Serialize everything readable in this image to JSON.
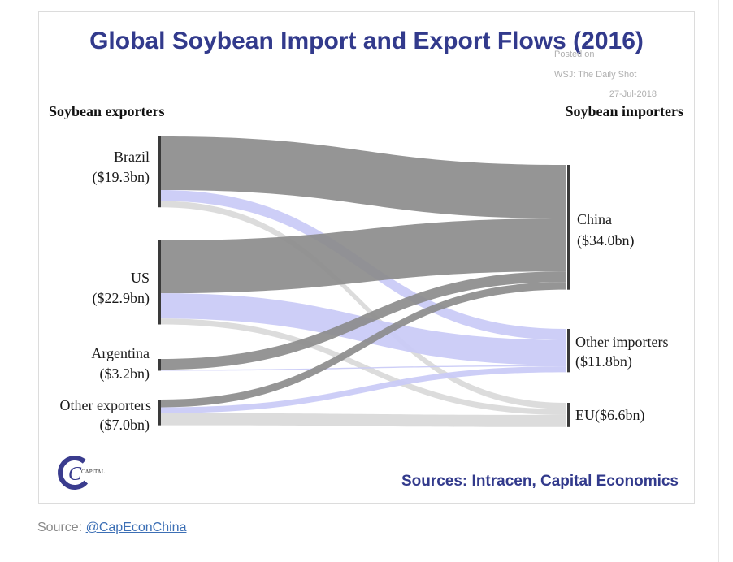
{
  "chart_data": {
    "type": "sankey",
    "title": "Global Soybean Import and Export Flows (2016)",
    "left_heading": "Soybean exporters",
    "right_heading": "Soybean importers",
    "exporters": [
      {
        "name": "Brazil",
        "value_label": "($19.3bn)",
        "value": 19.3
      },
      {
        "name": "US",
        "value_label": "($22.9bn)",
        "value": 22.9
      },
      {
        "name": "Argentina",
        "value_label": "($3.2bn)",
        "value": 3.2
      },
      {
        "name": "Other exporters",
        "value_label": "($7.0bn)",
        "value": 7.0
      }
    ],
    "importers": [
      {
        "name": "China",
        "value_label": "($34.0bn)",
        "value": 34.0
      },
      {
        "name": "Other importers",
        "value_label": "($11.8bn)",
        "value": 11.8
      },
      {
        "name": "EU",
        "value_label": "($6.6bn)",
        "value": 6.6
      }
    ],
    "flows": [
      {
        "from": "Brazil",
        "to": "China",
        "value": 14.6
      },
      {
        "from": "Brazil",
        "to": "Other importers",
        "value": 3.0
      },
      {
        "from": "Brazil",
        "to": "EU",
        "value": 1.7
      },
      {
        "from": "US",
        "to": "China",
        "value": 14.4
      },
      {
        "from": "US",
        "to": "Other importers",
        "value": 6.9
      },
      {
        "from": "US",
        "to": "EU",
        "value": 1.6
      },
      {
        "from": "Argentina",
        "to": "China",
        "value": 2.9
      },
      {
        "from": "Argentina",
        "to": "Other importers",
        "value": 0.3
      },
      {
        "from": "Other exporters",
        "to": "China",
        "value": 2.1
      },
      {
        "from": "Other exporters",
        "to": "Other importers",
        "value": 1.6
      },
      {
        "from": "Other exporters",
        "to": "EU",
        "value": 3.3
      }
    ],
    "flow_colors": {
      "China": "#8c8c8c",
      "Other importers": "#c9caf6",
      "EU": "#d9d9d9"
    },
    "node_bar_color": "#3a3a3a",
    "title_color": "#323a8c"
  },
  "watermark": {
    "line1": "Posted on",
    "line2": "WSJ: The Daily Shot",
    "line3": "27-Jul-2018"
  },
  "logo": {
    "letter": "C",
    "text": "CAPITAL"
  },
  "sources_text": "Sources: Intracen, Capital Economics",
  "caption": {
    "prefix": "Source: ",
    "link_text": "@CapEconChina"
  }
}
